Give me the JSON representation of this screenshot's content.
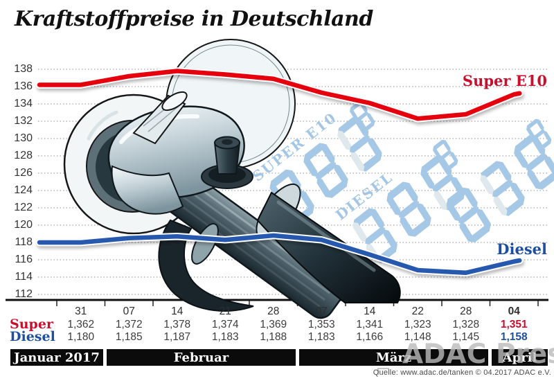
{
  "title": "Kraftstoffpreise in Deutschland",
  "source_note": "Quelle: www.adac.de/tanken    © 04.2017 ADAC e.V.",
  "press_watermark": "ADAC Presse",
  "lcd_watermark": {
    "labels": [
      "SUPER E10",
      "DIESEL"
    ],
    "digits": "888",
    "lit_color": "#a5c8e7",
    "ghost_color": "#dfe8ec"
  },
  "chart_data": {
    "type": "line",
    "title": "Kraftstoffpreise in Deutschland",
    "ylim": [
      112,
      138
    ],
    "y_tick_step": 2,
    "grid": true,
    "legend_position": "line-end-labels",
    "x_tick_labels": [
      "31",
      "07",
      "14",
      "21",
      "28",
      "07",
      "14",
      "22",
      "28",
      "04"
    ],
    "months": [
      {
        "label": "Januar 2017",
        "columns": 1
      },
      {
        "label": "Februar",
        "columns": 4
      },
      {
        "label": "März",
        "columns": 4
      },
      {
        "label": "April",
        "columns": 1
      }
    ],
    "series": [
      {
        "name": "Super E10",
        "table_label": "Super",
        "color": "#e6000f",
        "label_color": "#c8102e",
        "values": [
          136.2,
          137.2,
          137.8,
          137.4,
          136.9,
          135.3,
          134.1,
          132.3,
          132.8,
          135.1
        ],
        "values_display": [
          "1,362",
          "1,372",
          "1,378",
          "1,374",
          "1,369",
          "1,353",
          "1,341",
          "1,323",
          "1,328",
          "1,351"
        ]
      },
      {
        "name": "Diesel",
        "table_label": "Diesel",
        "color": "#2759ae",
        "label_color": "#1d4f9e",
        "values": [
          118.0,
          118.5,
          118.7,
          118.3,
          118.8,
          118.3,
          116.6,
          114.8,
          114.5,
          115.8
        ],
        "values_display": [
          "1,180",
          "1,185",
          "1,187",
          "1,183",
          "1,188",
          "1,183",
          "1,166",
          "1,148",
          "1,145",
          "1,158"
        ]
      }
    ]
  }
}
